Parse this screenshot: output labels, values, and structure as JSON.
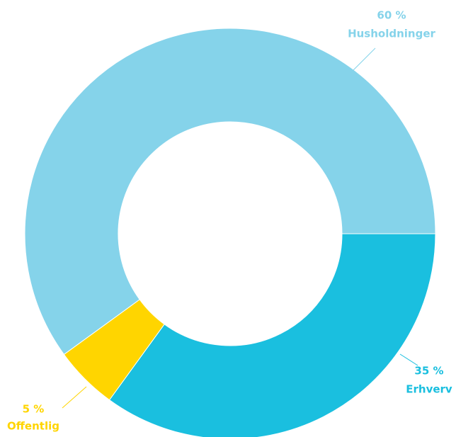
{
  "chart_data": {
    "type": "donut",
    "categories": [
      "Erhverv",
      "Offentlig",
      "Husholdninger"
    ],
    "values": [
      35,
      5,
      60
    ],
    "value_labels": [
      "35 %",
      "5 %",
      "60 %"
    ],
    "colors": [
      "#1abfdf",
      "#ffd500",
      "#85d3ea"
    ]
  }
}
